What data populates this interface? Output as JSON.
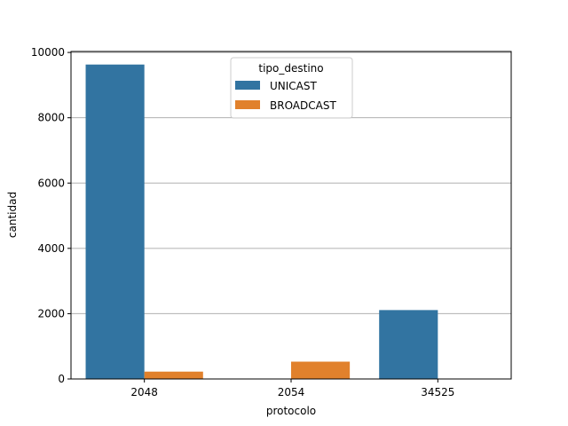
{
  "chart_data": {
    "type": "bar",
    "xlabel": "protocolo",
    "ylabel": "cantidad",
    "categories": [
      "2048",
      "2054",
      "34525"
    ],
    "series": [
      {
        "name": "UNICAST",
        "color": "#3274a1",
        "values": [
          9630,
          0,
          2110
        ]
      },
      {
        "name": "BROADCAST",
        "color": "#e1812c",
        "values": [
          225,
          530,
          0
        ]
      }
    ],
    "ylim": [
      0,
      10000
    ],
    "yticks": [
      0,
      2000,
      4000,
      6000,
      8000,
      10000
    ],
    "grid": "y",
    "legend": {
      "title": "tipo_destino",
      "placement": "top-center"
    }
  }
}
